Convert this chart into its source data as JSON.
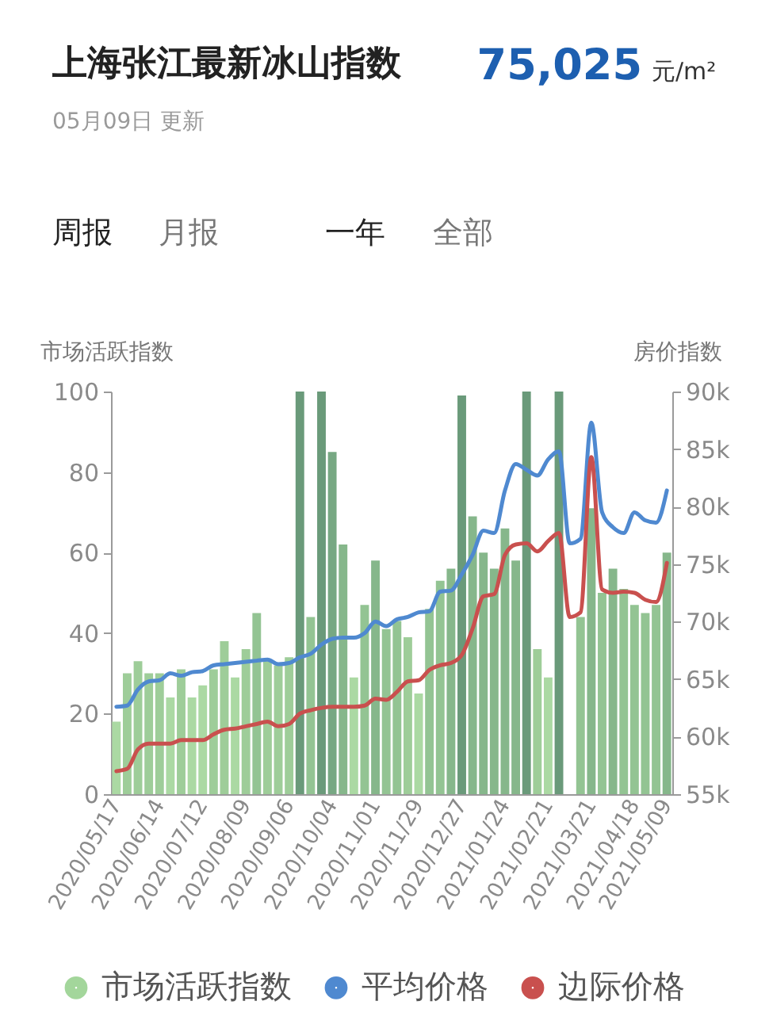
{
  "chart_data": {
    "type": "bar",
    "title": "上海张江最新冰山指数",
    "subtitle": "05月09日 更新",
    "annotations": [
      "75,025",
      "元/m²",
      "周报",
      "月报",
      "一年",
      "全部"
    ],
    "ylabel": "市场活跃指数",
    "y2label": "房价指数",
    "categories": [
      "2020/05/17",
      null,
      null,
      null,
      "2020/06/14",
      null,
      null,
      null,
      "2020/07/12",
      null,
      null,
      null,
      "2020/08/09",
      null,
      null,
      null,
      "2020/09/06",
      null,
      null,
      null,
      "2020/10/04",
      null,
      null,
      null,
      "2020/11/01",
      null,
      null,
      null,
      "2020/11/29",
      null,
      null,
      null,
      "2020/12/27",
      null,
      null,
      null,
      "2021/01/24",
      null,
      null,
      null,
      "2021/02/21",
      null,
      null,
      null,
      "2021/03/21",
      null,
      null,
      null,
      "2021/04/18",
      null,
      null,
      "2021/05/09"
    ],
    "series": [
      {
        "name": "市场活跃指数",
        "color": "#a3d69b",
        "colors": [
          "#abd9a3",
          "#9ecd99",
          "#9ecd99",
          "#9ecd99",
          "#9ecd99",
          "#abd9a3",
          "#9ecd99",
          "#abd9a3",
          "#abd9a3",
          "#9ecd99",
          "#9ecd99",
          "#abd9a3",
          "#9ecd99",
          "#93c493",
          "#9ecd99",
          "#9ecd99",
          "#9ecd99",
          "#6a9a7a",
          "#93c493",
          "#6a9a7a",
          "#77a883",
          "#86b78b",
          "#abd9a3",
          "#93c493",
          "#86b78b",
          "#93c493",
          "#93c493",
          "#9ecd99",
          "#abd9a3",
          "#93c493",
          "#93c493",
          "#86b78b",
          "#6a9a7a",
          "#86b78b",
          "#86b78b",
          "#86b78b",
          "#86b78b",
          "#86b78b",
          "#6a9a7a",
          "#9ecd99",
          "#abd9a3",
          "#6a9a7a",
          "#abd9a3",
          "#93c493",
          "#86b78b",
          "#93c493",
          "#86b78b",
          "#93c493",
          "#93c493",
          "#93c493",
          "#93c493",
          "#86b78b"
        ],
        "values": [
          18,
          30,
          33,
          30,
          30,
          24,
          31,
          24,
          27,
          31,
          38,
          29,
          36,
          45,
          33,
          32,
          34,
          100,
          44,
          100,
          85,
          62,
          29,
          47,
          58,
          41,
          43,
          39,
          25,
          46,
          53,
          56,
          99,
          69,
          60,
          56,
          66,
          58,
          100,
          36,
          29,
          100,
          null,
          44,
          71,
          50,
          56,
          51,
          47,
          45,
          47,
          60
        ]
      },
      {
        "name": "平均价格",
        "type": "line",
        "axis": "y2",
        "color": "#4f89d0",
        "values": [
          62600,
          62700,
          64100,
          64800,
          64900,
          65500,
          65300,
          65600,
          65700,
          66200,
          66300,
          66400,
          66500,
          66600,
          66700,
          66300,
          66400,
          66900,
          67200,
          68000,
          68500,
          68600,
          68600,
          69000,
          70000,
          69600,
          70200,
          70400,
          70800,
          70900,
          72600,
          72700,
          74100,
          75800,
          77900,
          77700,
          81400,
          83700,
          83200,
          82700,
          84100,
          84800,
          76800,
          77200,
          87300,
          79500,
          78200,
          77700,
          79500,
          78800,
          78600,
          81400
        ]
      },
      {
        "name": "边际价格",
        "type": "line",
        "axis": "y2",
        "color": "#c9504e",
        "values": [
          57000,
          57200,
          58900,
          59400,
          59400,
          59400,
          59700,
          59700,
          59700,
          60200,
          60600,
          60700,
          60900,
          61100,
          61300,
          60900,
          61100,
          62000,
          62300,
          62500,
          62600,
          62600,
          62600,
          62700,
          63300,
          63200,
          63900,
          64800,
          64900,
          65800,
          66200,
          66400,
          67100,
          69400,
          72200,
          72400,
          75800,
          76700,
          76800,
          76100,
          77000,
          77700,
          70400,
          70800,
          84300,
          72800,
          72500,
          72600,
          72500,
          71900,
          71700,
          75100
        ]
      }
    ],
    "ylim": [
      0,
      100
    ],
    "yticks": [
      0,
      20,
      40,
      60,
      80,
      100
    ],
    "y2lim": [
      55000,
      90000
    ],
    "y2ticks": [
      {
        "value": 55000,
        "label": "55k"
      },
      {
        "value": 60000,
        "label": "60k"
      },
      {
        "value": 65000,
        "label": "65k"
      },
      {
        "value": 70000,
        "label": "70k"
      },
      {
        "value": 75000,
        "label": "75k"
      },
      {
        "value": 80000,
        "label": "80k"
      },
      {
        "value": 85000,
        "label": "85k"
      },
      {
        "value": 90000,
        "label": "90k"
      }
    ],
    "legend": "bottom"
  }
}
